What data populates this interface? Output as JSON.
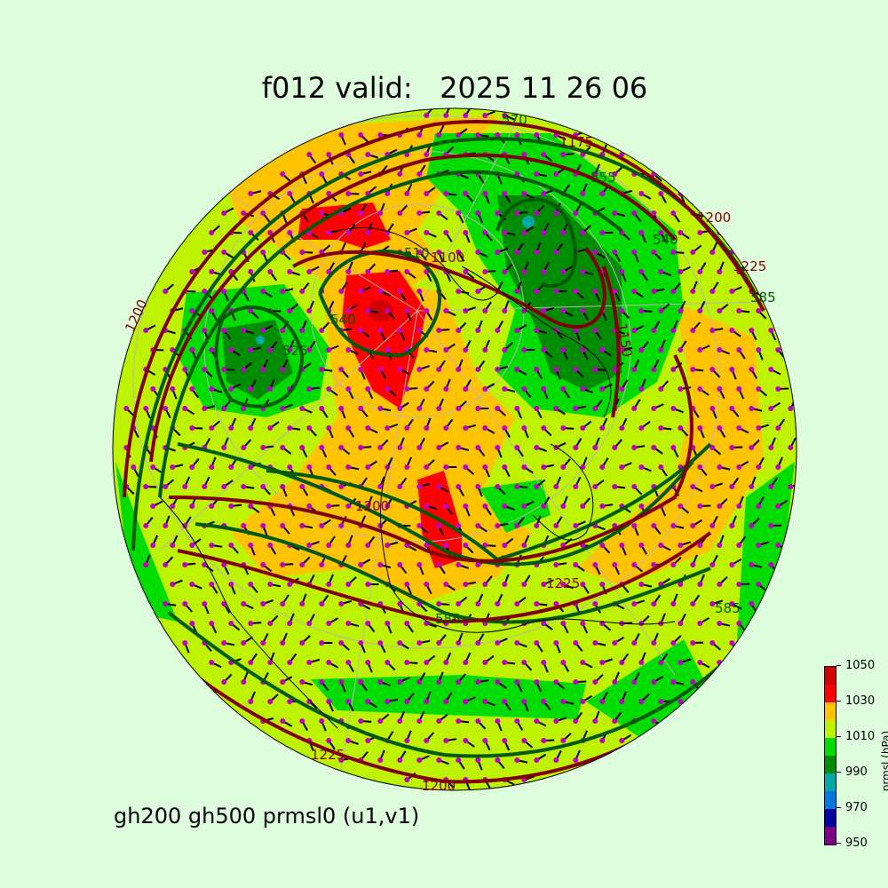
{
  "title": "f012 valid:   2025 11 26 06",
  "subtitle": "gh200 gh500 prmsl0 (u1,v1)",
  "colorbar": {
    "label": "prmsl (hPa)",
    "ticks": [
      "950",
      "970",
      "990",
      "1010",
      "1030",
      "1050"
    ],
    "levels": [
      950,
      960,
      970,
      980,
      990,
      1000,
      1010,
      1020,
      1030,
      1040,
      1050
    ],
    "colors": [
      "#7a0085",
      "#0000a0",
      "#0078e0",
      "#00a8a8",
      "#008c00",
      "#00dc00",
      "#bdf200",
      "#ffc400",
      "#ff0000",
      "#d00000"
    ]
  },
  "map": {
    "projection": "orthographic",
    "gh500_color": "#005a00",
    "gh200_color": "#800000",
    "wind_dot_color": "#c000c8",
    "contour_labels_gh500": [
      "570",
      "555",
      "540",
      "510",
      "540",
      "525",
      "585",
      "585",
      "585"
    ],
    "contour_labels_gh200": [
      "1175",
      "1200",
      "1225",
      "1100",
      "1150",
      "1200",
      "1225",
      "1225",
      "1200",
      "1200"
    ]
  }
}
